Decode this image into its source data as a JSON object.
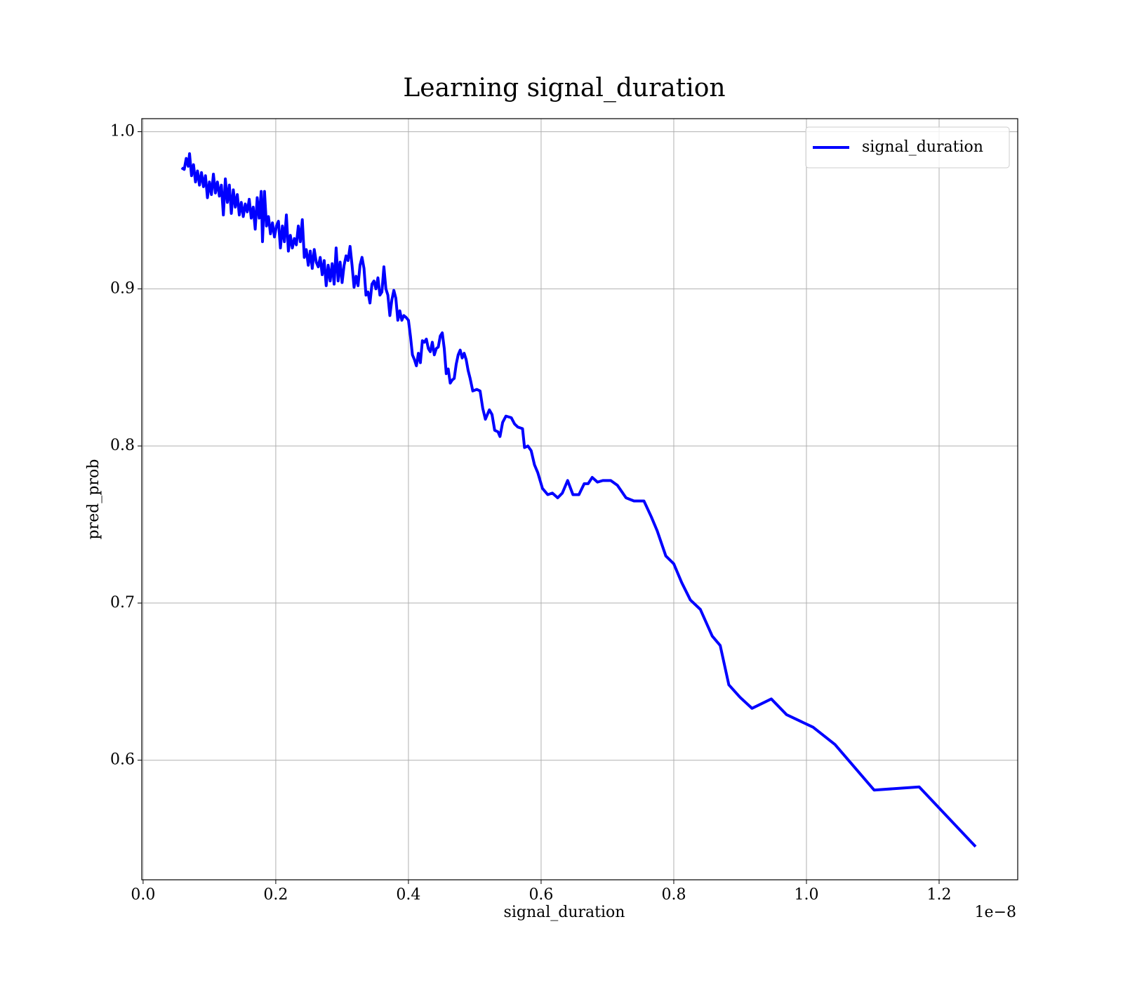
{
  "chart_data": {
    "type": "line",
    "title": "Learning signal_duration",
    "xlabel": "signal_duration",
    "ylabel": "pred_prob",
    "x_offset_label": "1e−8",
    "xlim": [
      -0.002,
      1.3185
    ],
    "ylim": [
      0.5239,
      1.0083
    ],
    "xticks": [
      {
        "value": 0,
        "label": "0.0"
      },
      0.2,
      0.4,
      0.6,
      0.8,
      {
        "value": 1,
        "label": "1.0"
      },
      1.2
    ],
    "yticks": [
      0.6,
      0.7,
      0.8,
      0.9,
      {
        "value": 1,
        "label": "1.0"
      }
    ],
    "grid": true,
    "legend": "upper right",
    "x": [
      0.058,
      0.062,
      0.065,
      0.068,
      0.07,
      0.073,
      0.076,
      0.079,
      0.082,
      0.085,
      0.088,
      0.091,
      0.094,
      0.097,
      0.1,
      0.103,
      0.106,
      0.109,
      0.112,
      0.115,
      0.118,
      0.121,
      0.124,
      0.127,
      0.13,
      0.133,
      0.136,
      0.139,
      0.142,
      0.145,
      0.148,
      0.151,
      0.154,
      0.157,
      0.16,
      0.163,
      0.166,
      0.169,
      0.172,
      0.175,
      0.178,
      0.18,
      0.183,
      0.186,
      0.189,
      0.192,
      0.195,
      0.198,
      0.201,
      0.204,
      0.207,
      0.21,
      0.213,
      0.216,
      0.219,
      0.222,
      0.225,
      0.228,
      0.231,
      0.234,
      0.237,
      0.24,
      0.243,
      0.246,
      0.249,
      0.252,
      0.255,
      0.258,
      0.261,
      0.264,
      0.267,
      0.27,
      0.273,
      0.276,
      0.279,
      0.282,
      0.285,
      0.288,
      0.291,
      0.294,
      0.297,
      0.3,
      0.303,
      0.306,
      0.309,
      0.312,
      0.315,
      0.318,
      0.321,
      0.324,
      0.327,
      0.33,
      0.333,
      0.336,
      0.339,
      0.342,
      0.345,
      0.348,
      0.351,
      0.354,
      0.357,
      0.36,
      0.363,
      0.366,
      0.369,
      0.372,
      0.375,
      0.378,
      0.381,
      0.384,
      0.387,
      0.39,
      0.393,
      0.396,
      0.4,
      0.403,
      0.406,
      0.409,
      0.412,
      0.415,
      0.418,
      0.421,
      0.424,
      0.427,
      0.43,
      0.433,
      0.436,
      0.439,
      0.442,
      0.445,
      0.448,
      0.451,
      0.454,
      0.457,
      0.46,
      0.463,
      0.466,
      0.469,
      0.472,
      0.475,
      0.478,
      0.481,
      0.484,
      0.487,
      0.49,
      0.493,
      0.497,
      0.503,
      0.508,
      0.512,
      0.516,
      0.522,
      0.526,
      0.53,
      0.535,
      0.538,
      0.542,
      0.547,
      0.555,
      0.56,
      0.565,
      0.572,
      0.575,
      0.58,
      0.585,
      0.59,
      0.595,
      0.602,
      0.61,
      0.617,
      0.625,
      0.632,
      0.64,
      0.648,
      0.657,
      0.665,
      0.671,
      0.677,
      0.685,
      0.693,
      0.705,
      0.715,
      0.728,
      0.74,
      0.755,
      0.766,
      0.775,
      0.788,
      0.8,
      0.812,
      0.825,
      0.84,
      0.858,
      0.87,
      0.883,
      0.9,
      0.918,
      0.947,
      0.97,
      1.01,
      1.043,
      1.102,
      1.17,
      1.255
    ],
    "series": [
      {
        "name": "signal_duration",
        "color": "#0000ff",
        "values": [
          0.977,
          0.976,
          0.983,
          0.978,
          0.986,
          0.972,
          0.979,
          0.968,
          0.975,
          0.966,
          0.974,
          0.965,
          0.972,
          0.958,
          0.968,
          0.96,
          0.973,
          0.961,
          0.968,
          0.959,
          0.966,
          0.947,
          0.97,
          0.955,
          0.966,
          0.948,
          0.963,
          0.952,
          0.96,
          0.947,
          0.955,
          0.946,
          0.954,
          0.949,
          0.957,
          0.945,
          0.952,
          0.938,
          0.958,
          0.945,
          0.962,
          0.93,
          0.962,
          0.94,
          0.946,
          0.935,
          0.942,
          0.933,
          0.94,
          0.943,
          0.926,
          0.94,
          0.93,
          0.947,
          0.924,
          0.934,
          0.926,
          0.932,
          0.928,
          0.94,
          0.93,
          0.944,
          0.92,
          0.925,
          0.915,
          0.924,
          0.913,
          0.925,
          0.917,
          0.914,
          0.92,
          0.909,
          0.918,
          0.902,
          0.915,
          0.905,
          0.916,
          0.903,
          0.926,
          0.905,
          0.917,
          0.904,
          0.915,
          0.921,
          0.918,
          0.927,
          0.915,
          0.901,
          0.908,
          0.902,
          0.915,
          0.92,
          0.913,
          0.896,
          0.898,
          0.891,
          0.903,
          0.905,
          0.9,
          0.907,
          0.896,
          0.898,
          0.914,
          0.9,
          0.896,
          0.883,
          0.893,
          0.899,
          0.894,
          0.88,
          0.886,
          0.88,
          0.883,
          0.882,
          0.88,
          0.87,
          0.858,
          0.855,
          0.851,
          0.859,
          0.853,
          0.867,
          0.866,
          0.868,
          0.862,
          0.86,
          0.866,
          0.858,
          0.862,
          0.863,
          0.87,
          0.872,
          0.862,
          0.846,
          0.849,
          0.84,
          0.842,
          0.843,
          0.852,
          0.858,
          0.861,
          0.856,
          0.859,
          0.855,
          0.848,
          0.843,
          0.835,
          0.836,
          0.835,
          0.824,
          0.817,
          0.823,
          0.82,
          0.81,
          0.809,
          0.806,
          0.815,
          0.819,
          0.818,
          0.814,
          0.812,
          0.811,
          0.799,
          0.8,
          0.797,
          0.788,
          0.783,
          0.773,
          0.769,
          0.77,
          0.767,
          0.77,
          0.778,
          0.769,
          0.769,
          0.776,
          0.776,
          0.78,
          0.777,
          0.778,
          0.778,
          0.775,
          0.767,
          0.765,
          0.765,
          0.755,
          0.746,
          0.73,
          0.725,
          0.713,
          0.702,
          0.696,
          0.679,
          0.673,
          0.648,
          0.64,
          0.633,
          0.639,
          0.629,
          0.621,
          0.61,
          0.581,
          0.583,
          0.545
        ]
      }
    ]
  }
}
